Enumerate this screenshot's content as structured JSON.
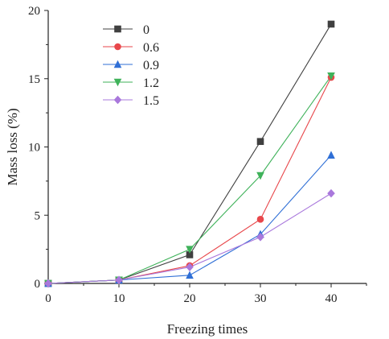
{
  "chart_data": {
    "type": "line",
    "x": [
      0,
      10,
      20,
      30,
      40
    ],
    "xlabel": "Freezing times",
    "ylabel": "Mass loss (%)",
    "xlim": [
      0,
      45
    ],
    "ylim": [
      0,
      20
    ],
    "xticks": [
      "0",
      "10",
      "20",
      "30",
      "40"
    ],
    "yticks": [
      "0",
      "5",
      "10",
      "15",
      "20"
    ],
    "grid": false,
    "legend_position": "top-left",
    "series": [
      {
        "name": "0",
        "color": "#404040",
        "marker": "square",
        "values": [
          0,
          0.25,
          2.1,
          10.4,
          19.0
        ]
      },
      {
        "name": "0.6",
        "color": "#e8474b",
        "marker": "circle",
        "values": [
          0,
          0.25,
          1.3,
          4.7,
          15.1
        ]
      },
      {
        "name": "0.9",
        "color": "#2f6fd6",
        "marker": "triangle-up",
        "values": [
          0,
          0.25,
          0.6,
          3.6,
          9.4
        ]
      },
      {
        "name": "1.2",
        "color": "#3fb25a",
        "marker": "triangle-down",
        "values": [
          0,
          0.25,
          2.5,
          7.9,
          15.2
        ]
      },
      {
        "name": "1.5",
        "color": "#a978dc",
        "marker": "diamond",
        "values": [
          0,
          0.25,
          1.2,
          3.4,
          6.6
        ]
      }
    ]
  }
}
